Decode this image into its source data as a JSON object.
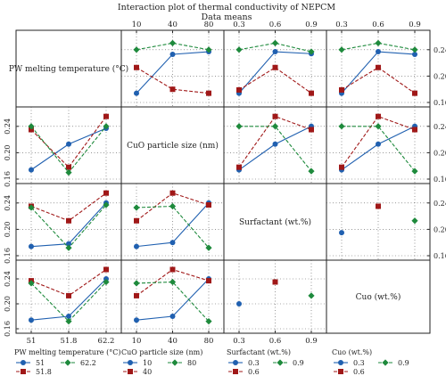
{
  "chart_data": {
    "type": "line",
    "title": "Interaction plot of thermal conductivity of NEPCM",
    "subtitle": "Data means",
    "factors": [
      {
        "name": "PW melting temperature (°C)",
        "levels": [
          "51",
          "51.8",
          "62.2"
        ]
      },
      {
        "name": "CuO particle size (nm)",
        "levels": [
          "10",
          "40",
          "80"
        ]
      },
      {
        "name": "Surfactant (wt.%)",
        "levels": [
          "0.3",
          "0.6",
          "0.9"
        ]
      },
      {
        "name": "Cuo (wt.%)",
        "levels": [
          "0.3",
          "0.6",
          "0.9"
        ]
      }
    ],
    "ylim": [
      0.16,
      0.26
    ],
    "yticks": [
      "0.16",
      "0.20",
      "0.24"
    ],
    "colors": [
      "#2060b0",
      "#a01818",
      "#1e8a3c"
    ],
    "markers": [
      "circle",
      "square",
      "diamond"
    ],
    "cells": [
      {
        "row": 0,
        "col": 1,
        "series": [
          [
            0.174,
            0.233,
            0.237
          ],
          [
            0.213,
            0.18,
            0.174
          ],
          [
            0.24,
            0.25,
            0.24
          ]
        ]
      },
      {
        "row": 0,
        "col": 2,
        "series": [
          [
            0.174,
            0.237,
            0.234
          ],
          [
            0.179,
            0.213,
            0.174
          ],
          [
            0.24,
            0.25,
            0.237
          ]
        ]
      },
      {
        "row": 0,
        "col": 3,
        "series": [
          [
            0.174,
            0.237,
            0.233
          ],
          [
            0.179,
            0.213,
            0.174
          ],
          [
            0.24,
            0.25,
            0.24
          ]
        ]
      },
      {
        "row": 1,
        "col": 0,
        "series": [
          [
            0.174,
            0.213,
            0.237
          ],
          [
            0.235,
            0.178,
            0.255
          ],
          [
            0.24,
            0.17,
            0.24
          ]
        ]
      },
      {
        "row": 1,
        "col": 2,
        "series": [
          [
            0.174,
            0.213,
            0.24
          ],
          [
            0.178,
            0.255,
            0.235
          ],
          [
            0.24,
            0.24,
            0.172
          ]
        ]
      },
      {
        "row": 1,
        "col": 3,
        "series": [
          [
            0.174,
            0.213,
            0.24
          ],
          [
            0.178,
            0.255,
            0.235
          ],
          [
            0.24,
            0.24,
            0.172
          ]
        ]
      },
      {
        "row": 2,
        "col": 0,
        "series": [
          [
            0.174,
            0.178,
            0.24
          ],
          [
            0.235,
            0.213,
            0.255
          ],
          [
            0.233,
            0.172,
            0.237
          ]
        ]
      },
      {
        "row": 2,
        "col": 1,
        "series": [
          [
            0.174,
            0.18,
            0.24
          ],
          [
            0.213,
            0.255,
            0.237
          ],
          [
            0.233,
            0.235,
            0.172
          ]
        ]
      },
      {
        "row": 2,
        "col": 3,
        "series": [
          [
            0.195,
            null,
            null
          ],
          [
            null,
            0.235,
            null
          ],
          [
            null,
            null,
            0.213
          ]
        ]
      },
      {
        "row": 3,
        "col": 0,
        "series": [
          [
            0.174,
            0.18,
            0.24
          ],
          [
            0.237,
            0.213,
            0.255
          ],
          [
            0.233,
            0.172,
            0.235
          ]
        ]
      },
      {
        "row": 3,
        "col": 1,
        "series": [
          [
            0.174,
            0.18,
            0.24
          ],
          [
            0.213,
            0.255,
            0.237
          ],
          [
            0.233,
            0.235,
            0.172
          ]
        ]
      },
      {
        "row": 3,
        "col": 2,
        "series": [
          [
            0.2,
            null,
            null
          ],
          [
            null,
            0.235,
            null
          ],
          [
            null,
            null,
            0.213
          ]
        ]
      }
    ],
    "legend": [
      {
        "title": "PW melting temperature (°C)",
        "entries": [
          "51",
          "62.2",
          "51.8"
        ]
      },
      {
        "title": "CuO particle size (nm)",
        "entries": [
          "10",
          "80",
          "40"
        ]
      },
      {
        "title": "Surfactant (wt.%)",
        "entries": [
          "0.3",
          "0.9",
          "0.6"
        ]
      },
      {
        "title": "Cuo (wt.%)",
        "entries": [
          "0.3",
          "0.9",
          "0.6"
        ]
      }
    ],
    "legend_placement": "bottom",
    "grid": true
  }
}
